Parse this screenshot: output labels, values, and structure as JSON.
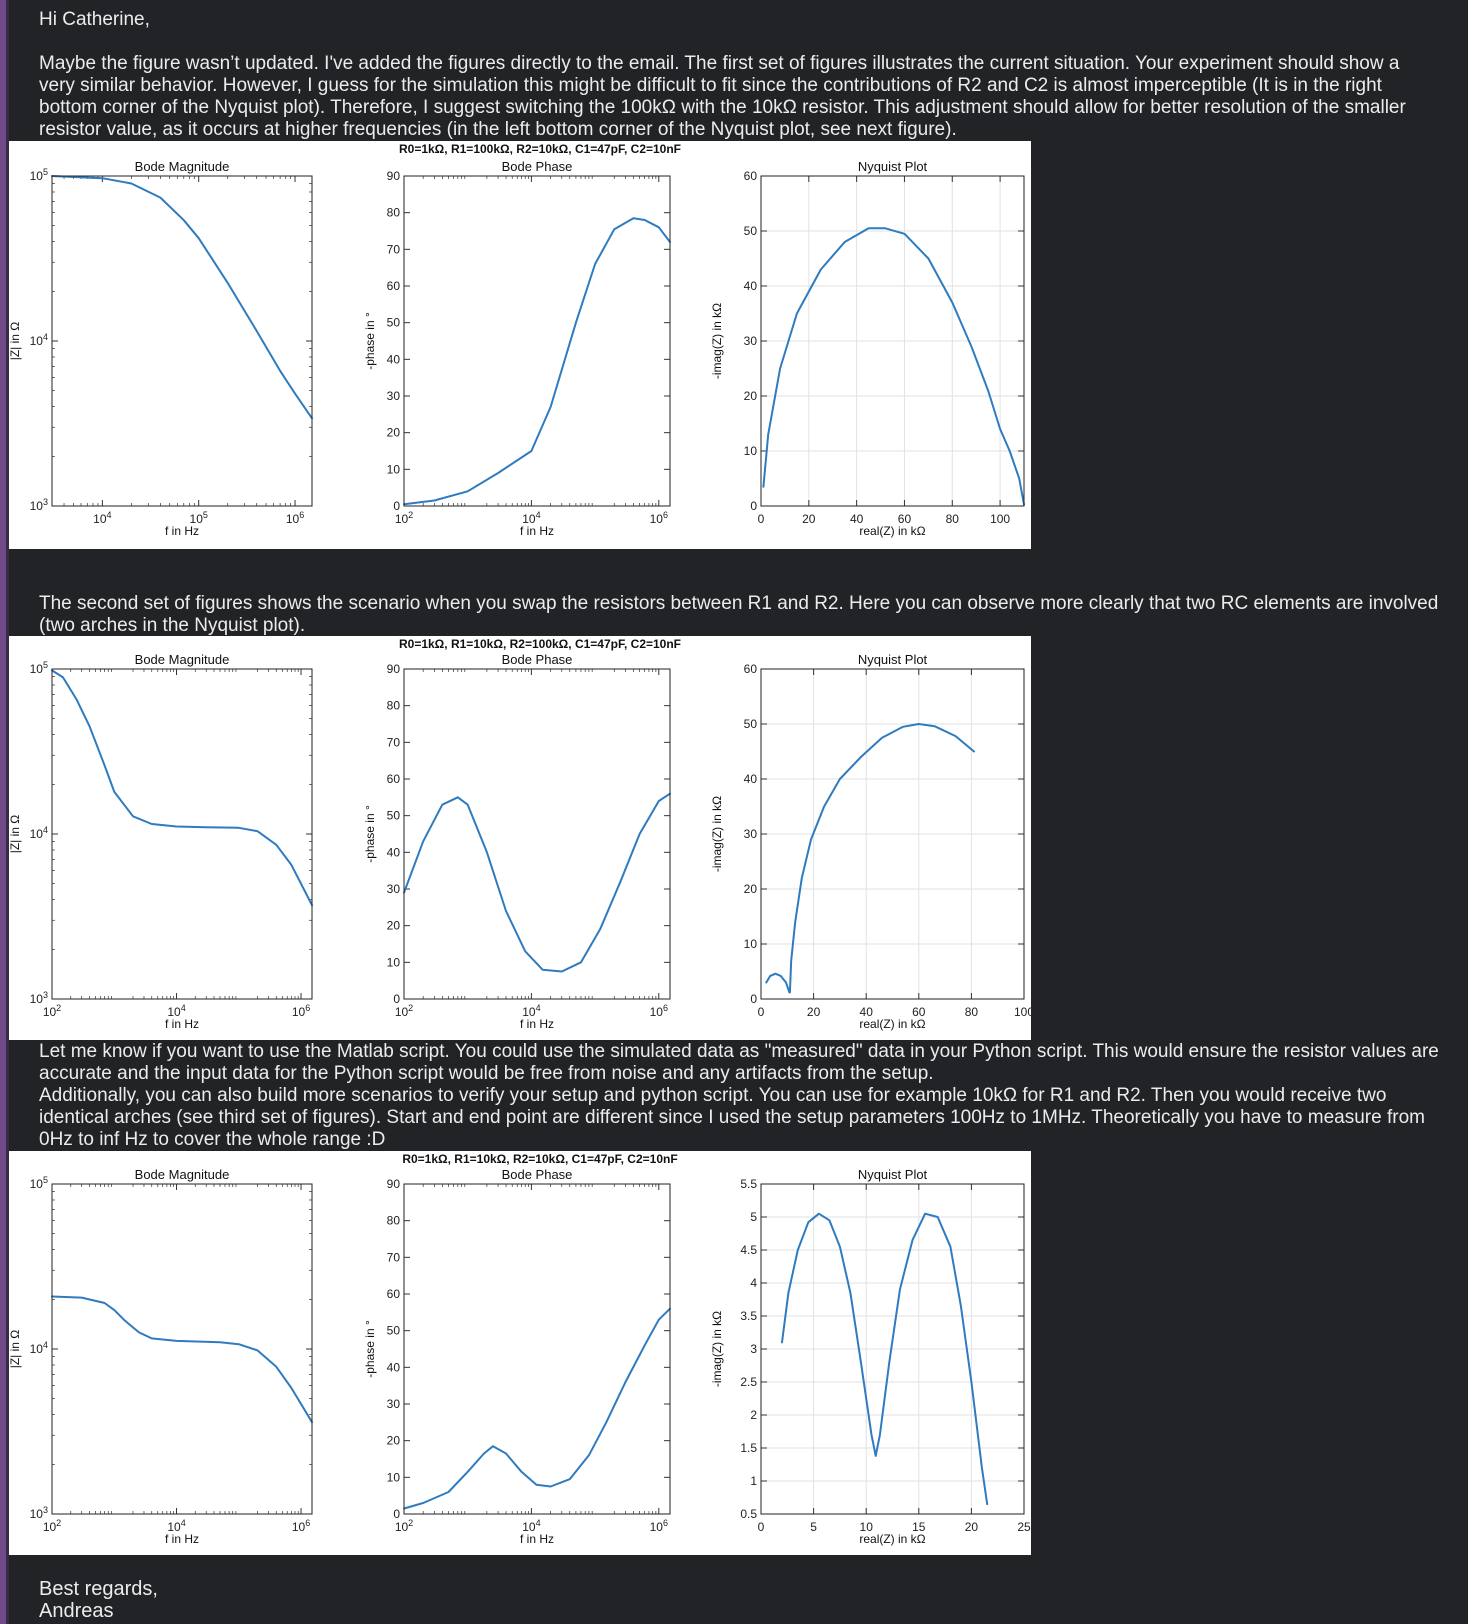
{
  "email": {
    "greeting": "Hi Catherine,",
    "para1": "Maybe the figure wasn’t updated. I've added the figures directly to the email. The first set of figures illustrates the current situation. Your experiment should show a very similar behavior. However, I guess for the simulation this might be difficult to fit since the contributions of R2 and C2 is almost imperceptible (It is in the right bottom corner of the Nyquist plot). Therefore, I suggest switching the 100kΩ with the 10kΩ resistor. This adjustment should allow for better resolution of the smaller resistor value, as it occurs at higher frequencies (in the left bottom corner of the Nyquist plot, see next figure).",
    "para2": "The second set of figures shows the scenario when you swap the resistors between R1 and R2. Here you can observe more clearly that two RC elements are involved (two arches in the Nyquist plot).",
    "para3": "Let me know if you want to use the Matlab script. You could use the simulated data as \"measured\" data in your Python script. This would ensure the resistor values are accurate and the input data for the Python script would be free from noise and any artifacts from the setup.",
    "para4": "Additionally, you can also build more scenarios to verify your setup and python script. You can use for example 10kΩ for R1 and R2. Then you would receive two identical arches (see third set of figures). Start and end point are different since I used the setup parameters 100Hz to 1MHz. Theoretically you have to measure from 0Hz to inf Hz to cover the whole range :D",
    "closing1": "Best regards,",
    "closing2": "Andreas"
  },
  "chart_data": [
    {
      "type": "line",
      "figure_title": "R0=1kΩ, R1=100kΩ, R2=10kΩ, C1=47pF, C2=10nF",
      "title": "Bode Magnitude",
      "xlabel": "f in Hz",
      "ylabel": "|Z| in Ω",
      "xscale": "log",
      "yscale": "log",
      "xlim": [
        3000,
        1500000
      ],
      "ylim": [
        1000,
        100000
      ],
      "xticks": [
        10000,
        100000,
        1000000
      ],
      "xtick_labels": [
        "10^4",
        "10^5",
        "10^6"
      ],
      "yticks": [
        1000,
        10000,
        100000
      ],
      "ytick_labels": [
        "10^3",
        "10^4",
        "10^5"
      ],
      "x": [
        3000,
        10000,
        20000,
        40000,
        70000,
        100000,
        200000,
        400000,
        700000,
        1000000,
        1500000
      ],
      "y": [
        100000,
        97000,
        90000,
        74000,
        54000,
        42000,
        22500,
        11500,
        6600,
        4800,
        3400
      ]
    },
    {
      "type": "line",
      "title": "Bode Phase",
      "xlabel": "f in Hz",
      "ylabel": "-phase in °",
      "xscale": "log",
      "xlim": [
        100,
        1500000
      ],
      "ylim": [
        0,
        90
      ],
      "xticks": [
        100,
        10000,
        1000000
      ],
      "xtick_labels": [
        "10^2",
        "10^4",
        "10^6"
      ],
      "yticks": [
        0,
        10,
        20,
        30,
        40,
        50,
        60,
        70,
        80,
        90
      ],
      "x": [
        100,
        300,
        1000,
        3000,
        10000,
        20000,
        50000,
        100000,
        200000,
        400000,
        600000,
        1000000,
        1500000
      ],
      "y": [
        0.5,
        1.5,
        4,
        9,
        15,
        27,
        50,
        66,
        75.5,
        78.5,
        78,
        76,
        72
      ]
    },
    {
      "type": "line",
      "title": "Nyquist Plot",
      "xlabel": "real(Z) in kΩ",
      "ylabel": "-imag(Z) in kΩ",
      "xlim": [
        0,
        110
      ],
      "ylim": [
        0,
        60
      ],
      "xticks": [
        0,
        20,
        40,
        60,
        80,
        100
      ],
      "yticks": [
        0,
        10,
        20,
        30,
        40,
        50,
        60
      ],
      "grid": true,
      "x": [
        1,
        3,
        8,
        15,
        25,
        35,
        45,
        52,
        60,
        70,
        80,
        88,
        95,
        100,
        104,
        108,
        110
      ],
      "y": [
        3.5,
        13,
        25,
        35,
        43,
        48,
        50.5,
        50.5,
        49.5,
        45,
        37,
        29,
        21,
        14,
        10,
        5,
        0.3
      ]
    },
    {
      "type": "line",
      "figure_title": "R0=1kΩ, R1=10kΩ, R2=100kΩ, C1=47pF, C2=10nF",
      "title": "Bode Magnitude",
      "xlabel": "f in Hz",
      "ylabel": "|Z| in Ω",
      "xscale": "log",
      "yscale": "log",
      "xlim": [
        100,
        1500000
      ],
      "ylim": [
        1000,
        100000
      ],
      "xticks": [
        100,
        10000,
        1000000
      ],
      "xtick_labels": [
        "10^2",
        "10^4",
        "10^6"
      ],
      "yticks": [
        1000,
        10000,
        100000
      ],
      "ytick_labels": [
        "10^3",
        "10^4",
        "10^5"
      ],
      "x": [
        100,
        150,
        250,
        400,
        700,
        1000,
        2000,
        4000,
        10000,
        30000,
        100000,
        200000,
        400000,
        700000,
        1500000
      ],
      "y": [
        98000,
        89000,
        65000,
        45000,
        26000,
        18000,
        12800,
        11500,
        11100,
        11000,
        10900,
        10400,
        8600,
        6500,
        3700
      ]
    },
    {
      "type": "line",
      "title": "Bode Phase",
      "xlabel": "f in Hz",
      "ylabel": "-phase in °",
      "xscale": "log",
      "xlim": [
        100,
        1500000
      ],
      "ylim": [
        0,
        90
      ],
      "xticks": [
        100,
        10000,
        1000000
      ],
      "xtick_labels": [
        "10^2",
        "10^4",
        "10^6"
      ],
      "yticks": [
        0,
        10,
        20,
        30,
        40,
        50,
        60,
        70,
        80,
        90
      ],
      "x": [
        100,
        200,
        400,
        700,
        1000,
        2000,
        4000,
        8000,
        15000,
        30000,
        60000,
        120000,
        250000,
        500000,
        1000000,
        1500000
      ],
      "y": [
        29,
        43,
        53,
        55,
        53,
        40,
        24,
        13,
        8,
        7.5,
        10,
        19,
        32,
        45,
        54,
        56
      ]
    },
    {
      "type": "line",
      "title": "Nyquist Plot",
      "xlabel": "real(Z) in kΩ",
      "ylabel": "-imag(Z) in kΩ",
      "xlim": [
        0,
        100
      ],
      "ylim": [
        0,
        60
      ],
      "xticks": [
        0,
        20,
        40,
        60,
        80,
        100
      ],
      "yticks": [
        0,
        10,
        20,
        30,
        40,
        50,
        60
      ],
      "grid": true,
      "x": [
        2,
        3.5,
        5.5,
        7.5,
        9.5,
        10.8,
        11,
        11.5,
        13,
        15.5,
        19,
        24,
        30,
        38,
        46,
        54,
        60,
        66,
        74,
        81
      ],
      "y": [
        3,
        4.2,
        4.6,
        4.2,
        3,
        1.2,
        1.2,
        7,
        14,
        22,
        29,
        35,
        40,
        44,
        47.5,
        49.5,
        50,
        49.6,
        47.8,
        45
      ]
    },
    {
      "type": "line",
      "figure_title": "R0=1kΩ, R1=10kΩ, R2=10kΩ, C1=47pF, C2=10nF",
      "title": "Bode Magnitude",
      "xlabel": "f in Hz",
      "ylabel": "|Z| in Ω",
      "xscale": "log",
      "yscale": "log",
      "xlim": [
        100,
        1500000
      ],
      "ylim": [
        1000,
        100000
      ],
      "xticks": [
        100,
        10000,
        1000000
      ],
      "xtick_labels": [
        "10^2",
        "10^4",
        "10^6"
      ],
      "yticks": [
        1000,
        10000,
        100000
      ],
      "ytick_labels": [
        "10^3",
        "10^4",
        "10^5"
      ],
      "x": [
        100,
        300,
        700,
        1000,
        1500,
        2500,
        4000,
        10000,
        50000,
        100000,
        200000,
        400000,
        700000,
        1500000
      ],
      "y": [
        20800,
        20500,
        19000,
        17200,
        14800,
        12600,
        11600,
        11200,
        11000,
        10700,
        9800,
        7800,
        5800,
        3600
      ]
    },
    {
      "type": "line",
      "title": "Bode Phase",
      "xlabel": "f in Hz",
      "ylabel": "-phase in °",
      "xscale": "log",
      "xlim": [
        100,
        1500000
      ],
      "ylim": [
        0,
        90
      ],
      "xticks": [
        100,
        10000,
        1000000
      ],
      "xtick_labels": [
        "10^2",
        "10^4",
        "10^6"
      ],
      "yticks": [
        0,
        10,
        20,
        30,
        40,
        50,
        60,
        70,
        80,
        90
      ],
      "x": [
        100,
        200,
        500,
        1000,
        1800,
        2500,
        4000,
        7000,
        12000,
        20000,
        40000,
        80000,
        150000,
        300000,
        600000,
        1000000,
        1500000
      ],
      "y": [
        1.5,
        3,
        6,
        11.5,
        16.5,
        18.5,
        16.5,
        11.5,
        8,
        7.5,
        9.5,
        16,
        25,
        36,
        46,
        53,
        56
      ]
    },
    {
      "type": "line",
      "title": "Nyquist Plot",
      "xlabel": "real(Z) in kΩ",
      "ylabel": "-imag(Z) in kΩ",
      "xlim": [
        0,
        25
      ],
      "ylim": [
        0.5,
        5.5
      ],
      "xticks": [
        0,
        5,
        10,
        15,
        20,
        25
      ],
      "yticks": [
        0.5,
        1,
        1.5,
        2,
        2.5,
        3,
        3.5,
        4,
        4.5,
        5,
        5.5
      ],
      "grid": true,
      "x": [
        2.0,
        2.6,
        3.5,
        4.5,
        5.5,
        6.5,
        7.5,
        8.5,
        9.5,
        10.5,
        10.9,
        11.3,
        12.2,
        13.2,
        14.4,
        15.6,
        16.8,
        18.0,
        19.0,
        20.0,
        21.0,
        21.5
      ],
      "y": [
        3.1,
        3.85,
        4.5,
        4.92,
        5.05,
        4.95,
        4.55,
        3.85,
        2.8,
        1.7,
        1.38,
        1.7,
        2.8,
        3.9,
        4.65,
        5.05,
        5.0,
        4.55,
        3.65,
        2.5,
        1.2,
        0.65
      ]
    }
  ]
}
